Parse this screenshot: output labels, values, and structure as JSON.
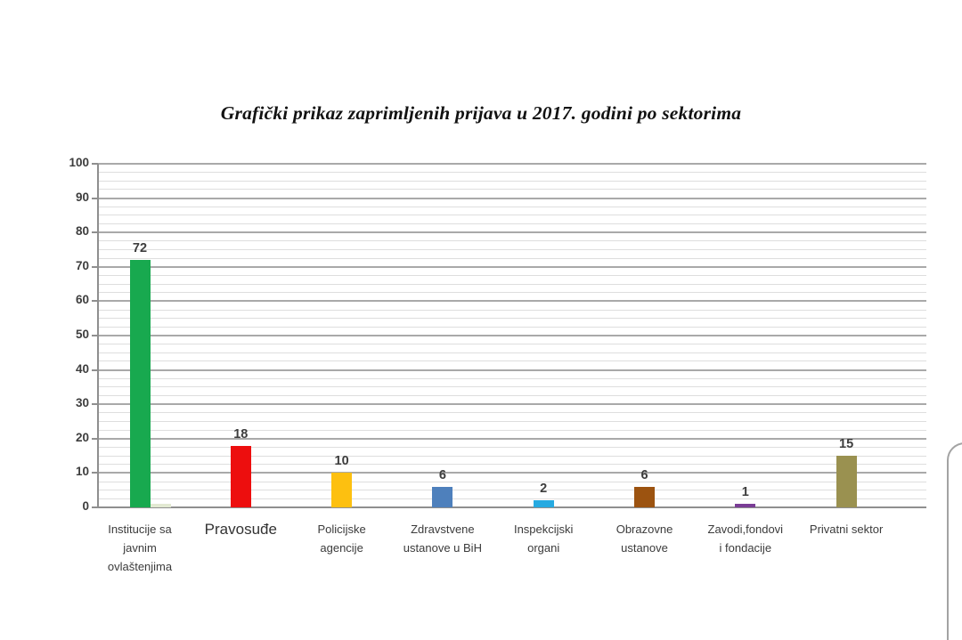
{
  "title": "Grafički prikaz zaprimljenih prijava u 2017. godini po sektorima",
  "chart_data": {
    "type": "bar",
    "title": "Grafički prikaz zaprimljenih prijava u 2017. godini po sektorima",
    "categories": [
      "Institucije sa javnim ovlaštenjima",
      "Pravosuđe",
      "Policijske agencije",
      "Zdravstvene ustanove u BiH",
      "Inspekcijski organi",
      "Obrazovne ustanove",
      "Zavodi,fondovi i fondacije",
      "Privatni sektor"
    ],
    "label_lines": [
      [
        "Institucije sa",
        "javnim",
        "ovlaštenjima"
      ],
      [
        "Pravosuđe"
      ],
      [
        "Policijske",
        "agencije"
      ],
      [
        "Zdravstvene",
        "ustanove u BiH"
      ],
      [
        "Inspekcijski",
        "organi"
      ],
      [
        "Obrazovne",
        "ustanove"
      ],
      [
        "Zavodi,fondovi",
        "i fondacije"
      ],
      [
        "Privatni sektor"
      ]
    ],
    "values": [
      72,
      18,
      10,
      6,
      2,
      6,
      1,
      15
    ],
    "bar_colors": [
      "#18A94F",
      "#ED0E0E",
      "#FDC010",
      "#4E80BC",
      "#27AAE1",
      "#9C5310",
      "#7A3D96",
      "#9A9150"
    ],
    "value_labels": [
      "72",
      "18",
      "10",
      "6",
      "2",
      "6",
      "1",
      "15"
    ],
    "emphasized_category_index": 1,
    "secondary_bar": {
      "category_index": 0,
      "value": 1,
      "color": "#E2E9D2"
    },
    "ylim": [
      0,
      100
    ],
    "ytick_step": 10,
    "yticks": [
      "0",
      "10",
      "20",
      "30",
      "40",
      "50",
      "60",
      "70",
      "80",
      "90",
      "100"
    ],
    "minor_grid_step": 2.5,
    "grid": "horizontal",
    "legend": "none",
    "xlabel": "",
    "ylabel": ""
  }
}
